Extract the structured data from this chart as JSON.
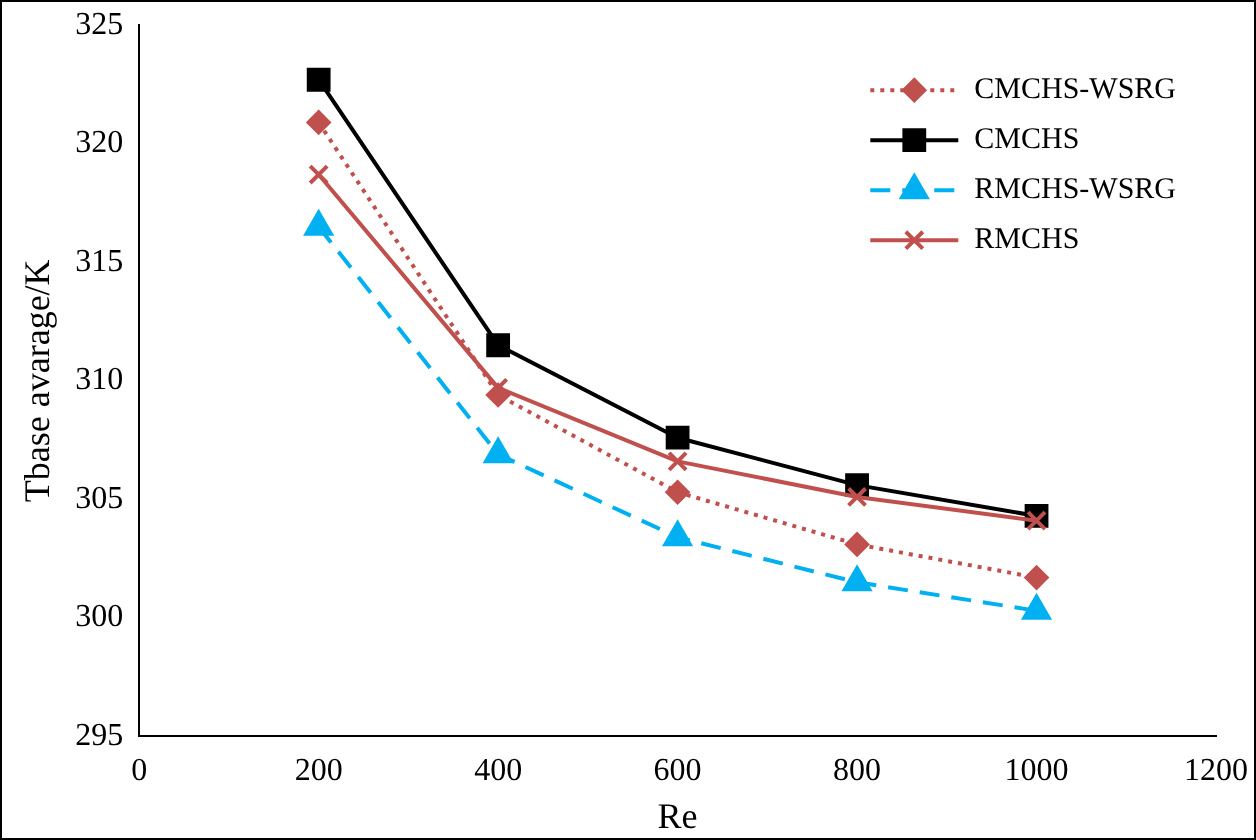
{
  "chart_data": {
    "type": "line",
    "xlabel": "Re",
    "ylabel": "Tbase avarage/K",
    "x": [
      200,
      400,
      600,
      800,
      1000
    ],
    "series": [
      {
        "name": "CMCHS-WSRG",
        "color": "#c0504d",
        "values": [
          320.9,
          309.4,
          305.3,
          303.1,
          301.7
        ],
        "marker": "diamond",
        "line_style": "dotted"
      },
      {
        "name": "CMCHS",
        "color": "#000000",
        "values": [
          322.7,
          311.5,
          307.6,
          305.6,
          304.3
        ],
        "marker": "square",
        "line_style": "solid"
      },
      {
        "name": "RMCHS-WSRG",
        "color": "#00b0f0",
        "values": [
          316.5,
          306.9,
          303.4,
          301.5,
          300.3
        ],
        "marker": "triangle",
        "line_style": "dashed"
      },
      {
        "name": "RMCHS",
        "color": "#c0504d",
        "values": [
          318.7,
          309.7,
          306.6,
          305.1,
          304.1
        ],
        "marker": "cross",
        "line_style": "solid"
      }
    ],
    "xlim": [
      0,
      1200
    ],
    "xticks": [
      0,
      200,
      400,
      600,
      800,
      1000,
      1200
    ],
    "ylim": [
      295,
      325
    ],
    "yticks": [
      295,
      300,
      305,
      310,
      315,
      320,
      325
    ],
    "grid": false,
    "legend": "top right"
  }
}
